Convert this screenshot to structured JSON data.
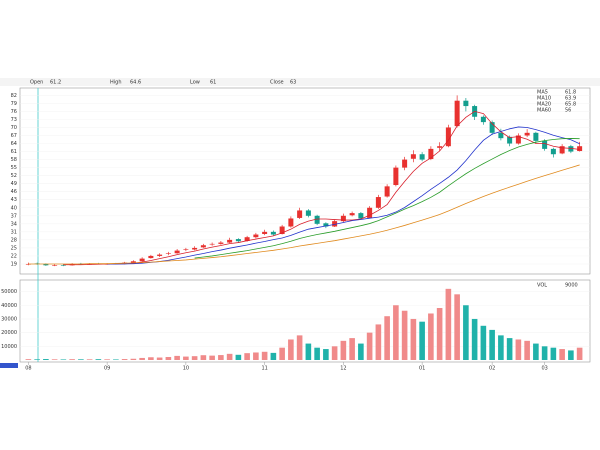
{
  "chart_data": {
    "type": "candlestick",
    "header": [
      "Open",
      "High",
      "Low",
      "Close"
    ],
    "ohlc": [
      [
        19,
        19.5,
        18.5,
        19
      ],
      [
        19.2,
        19.5,
        18.7,
        19
      ],
      [
        19,
        19.2,
        18.3,
        18.5
      ],
      [
        18.5,
        18.9,
        18.2,
        18.5
      ],
      [
        18.6,
        18.9,
        18.2,
        18.5
      ],
      [
        18.5,
        19.3,
        18.4,
        19
      ],
      [
        19.1,
        19.4,
        18.8,
        19
      ],
      [
        18.9,
        19.3,
        18.7,
        19
      ],
      [
        19.1,
        19.4,
        18.8,
        19
      ],
      [
        18.9,
        19.3,
        18.7,
        19
      ],
      [
        19.1,
        19.4,
        18.8,
        19
      ],
      [
        19,
        19.8,
        18.9,
        19.5
      ],
      [
        19.4,
        20.4,
        19.3,
        20
      ],
      [
        20,
        21.5,
        19.8,
        21
      ],
      [
        21.2,
        22.4,
        21,
        22
      ],
      [
        22,
        23,
        21.6,
        22.5
      ],
      [
        22.8,
        23.5,
        22.3,
        23
      ],
      [
        23,
        24.6,
        22.8,
        24
      ],
      [
        24.3,
        25,
        23.8,
        24.5
      ],
      [
        24.4,
        25.6,
        24.1,
        25
      ],
      [
        25.2,
        26.5,
        25,
        26
      ],
      [
        26.3,
        27,
        25.8,
        26.5
      ],
      [
        26.5,
        27.6,
        26.2,
        27
      ],
      [
        27,
        28.8,
        26.8,
        28
      ],
      [
        28.3,
        28.6,
        27,
        27.5
      ],
      [
        27.6,
        29.5,
        27.3,
        29
      ],
      [
        29,
        30.6,
        28.6,
        30
      ],
      [
        30.2,
        31.8,
        29.8,
        31
      ],
      [
        31,
        31.5,
        29.5,
        30
      ],
      [
        30.2,
        33.6,
        30,
        33
      ],
      [
        33,
        36.8,
        32.6,
        36
      ],
      [
        36.2,
        40,
        35.8,
        39
      ],
      [
        39,
        39.5,
        36.4,
        37
      ],
      [
        37,
        37.4,
        33.5,
        34
      ],
      [
        34.2,
        34.6,
        32.4,
        33
      ],
      [
        33,
        35.6,
        32.8,
        35
      ],
      [
        35,
        37.8,
        34.6,
        37
      ],
      [
        37.2,
        38.6,
        36.8,
        38
      ],
      [
        38,
        38.4,
        35.5,
        36
      ],
      [
        36.2,
        40.6,
        36,
        40
      ],
      [
        40,
        44.8,
        39.6,
        44
      ],
      [
        44.2,
        48.8,
        43.8,
        48
      ],
      [
        48.5,
        55.8,
        48,
        55
      ],
      [
        55,
        59,
        54,
        58
      ],
      [
        58.3,
        61.5,
        57,
        60
      ],
      [
        60,
        60.8,
        57.4,
        58
      ],
      [
        58.2,
        63,
        57.8,
        62
      ],
      [
        62.4,
        64.5,
        61.2,
        63
      ],
      [
        63,
        71,
        62.6,
        70
      ],
      [
        70.5,
        82,
        70,
        80
      ],
      [
        80,
        81,
        76,
        78
      ],
      [
        78,
        78.5,
        72.8,
        74
      ],
      [
        74,
        74.5,
        71,
        72
      ],
      [
        72,
        72.6,
        67.2,
        68
      ],
      [
        68,
        69.5,
        65.2,
        66
      ],
      [
        66.5,
        67,
        63,
        64
      ],
      [
        64,
        67.8,
        63.6,
        67
      ],
      [
        67,
        69.4,
        66.4,
        68
      ],
      [
        68,
        68.4,
        64.2,
        65
      ],
      [
        65,
        65.6,
        61.3,
        62
      ],
      [
        62,
        62.4,
        58.8,
        60
      ],
      [
        60.3,
        63.8,
        60,
        63
      ],
      [
        63,
        63.5,
        60.4,
        61
      ],
      [
        61.2,
        64.6,
        61,
        63
      ]
    ],
    "up_color": "#e8312f",
    "down_color": "#129e8e",
    "series": [
      {
        "name": "MA5",
        "color": "#d81e2b",
        "values": [
          null,
          null,
          null,
          null,
          18.7,
          18.7,
          18.7,
          18.8,
          18.9,
          19,
          19,
          19.1,
          19.3,
          19.7,
          20.3,
          21,
          21.7,
          22.5,
          23.2,
          23.8,
          24.6,
          25.3,
          25.9,
          26.6,
          27,
          27.7,
          28.3,
          28.9,
          29.5,
          30.6,
          32,
          33.8,
          35,
          35.8,
          35.8,
          35.6,
          35.4,
          35.4,
          35.8,
          37.2,
          39,
          41.2,
          45.8,
          49.8,
          53.6,
          56.6,
          58.6,
          61.2,
          65.2,
          70.6,
          73.8,
          76,
          75.2,
          71.4,
          68.4,
          66.2,
          66.6,
          65.6,
          64,
          64,
          63,
          62.4,
          62.2,
          61.8
        ]
      },
      {
        "name": "MA10",
        "color": "#2233cc",
        "values": [
          null,
          null,
          null,
          null,
          null,
          null,
          null,
          null,
          null,
          19,
          19,
          19,
          19.1,
          19.3,
          19.6,
          19.9,
          20.4,
          21,
          21.6,
          22.3,
          22.9,
          23.6,
          24.2,
          24.9,
          25.5,
          26.1,
          26.8,
          27.4,
          28.1,
          28.7,
          29.7,
          30.9,
          32,
          32.6,
          33.2,
          33.8,
          34.5,
          35.2,
          35.6,
          36.1,
          36.5,
          37.2,
          38.4,
          40.1,
          42.3,
          44.5,
          46.9,
          49.1,
          51.4,
          54.1,
          57.6,
          61.6,
          65.2,
          67.5,
          68.5,
          69.5,
          70.2,
          70,
          69.2,
          68.2,
          67.1,
          66.2,
          65.4,
          63.9
        ]
      },
      {
        "name": "MA20",
        "color": "#2a9d2a",
        "values": [
          null,
          null,
          null,
          null,
          null,
          null,
          null,
          null,
          null,
          null,
          null,
          null,
          null,
          null,
          null,
          null,
          null,
          null,
          null,
          21.2,
          21.6,
          22,
          22.5,
          23,
          23.5,
          24,
          24.6,
          25.2,
          25.8,
          26.6,
          27.5,
          28.5,
          29.3,
          30,
          30.6,
          31.2,
          31.9,
          32.6,
          33.3,
          34.1,
          35.2,
          36.6,
          38,
          39.5,
          40.8,
          42.3,
          43.9,
          45.8,
          48.2,
          50.5,
          52.7,
          54.7,
          56.5,
          58.2,
          59.9,
          61.4,
          62.7,
          63.7,
          64.5,
          65.1,
          65.5,
          65.8,
          65.9,
          65.8
        ]
      },
      {
        "name": "MA60",
        "color": "#e08a1e",
        "values": [
          19,
          19,
          19,
          19,
          19,
          19,
          19,
          19.1,
          19.1,
          19.1,
          19.2,
          19.3,
          19.4,
          19.5,
          19.7,
          19.9,
          20.1,
          20.3,
          20.5,
          20.8,
          21.1,
          21.4,
          21.7,
          22.1,
          22.5,
          22.9,
          23.3,
          23.7,
          24.1,
          24.6,
          25.1,
          25.7,
          26.2,
          26.7,
          27.2,
          27.7,
          28.3,
          28.9,
          29.5,
          30.1,
          30.8,
          31.6,
          32.5,
          33.4,
          34.4,
          35.4,
          36.4,
          37.5,
          38.8,
          40.2,
          41.6,
          42.9,
          44.2,
          45.4,
          46.6,
          47.7,
          48.8,
          49.9,
          51,
          52,
          53,
          54,
          55,
          56
        ]
      }
    ],
    "ylim": [
      16,
      84
    ],
    "yticks": [
      19,
      22,
      25,
      28,
      31,
      34,
      37,
      40,
      43,
      46,
      49,
      52,
      55,
      58,
      61,
      64,
      67,
      70,
      73,
      76,
      79,
      82
    ],
    "xticks": [
      {
        "value": 0,
        "label": "08"
      },
      {
        "value": 9,
        "label": "09"
      },
      {
        "value": 18,
        "label": "10"
      },
      {
        "value": 27,
        "label": "11"
      },
      {
        "value": 36,
        "label": "12"
      },
      {
        "value": 45,
        "label": "01"
      },
      {
        "value": 53,
        "label": "02"
      },
      {
        "value": 59,
        "label": "03"
      }
    ],
    "volume": {
      "name": "VOL",
      "up_color": "#f08a8a",
      "down_color": "#20b2aa",
      "values": [
        600,
        500,
        700,
        500,
        400,
        600,
        500,
        500,
        600,
        500,
        400,
        700,
        900,
        1500,
        2000,
        1800,
        2200,
        3000,
        2500,
        2800,
        3500,
        3200,
        3600,
        4500,
        3800,
        5000,
        5500,
        6000,
        5200,
        9000,
        15000,
        18000,
        12000,
        9000,
        8000,
        10000,
        14000,
        16000,
        12000,
        20000,
        26000,
        32000,
        40000,
        36000,
        30000,
        28000,
        34000,
        38000,
        52000,
        48000,
        40000,
        30000,
        25000,
        22000,
        18000,
        16000,
        15000,
        14000,
        12000,
        10000,
        9000,
        8000,
        7000,
        9000
      ],
      "ylim": [
        0,
        57000
      ],
      "yticks": [
        10000,
        20000,
        30000,
        40000,
        50000
      ]
    },
    "grid": true
  }
}
